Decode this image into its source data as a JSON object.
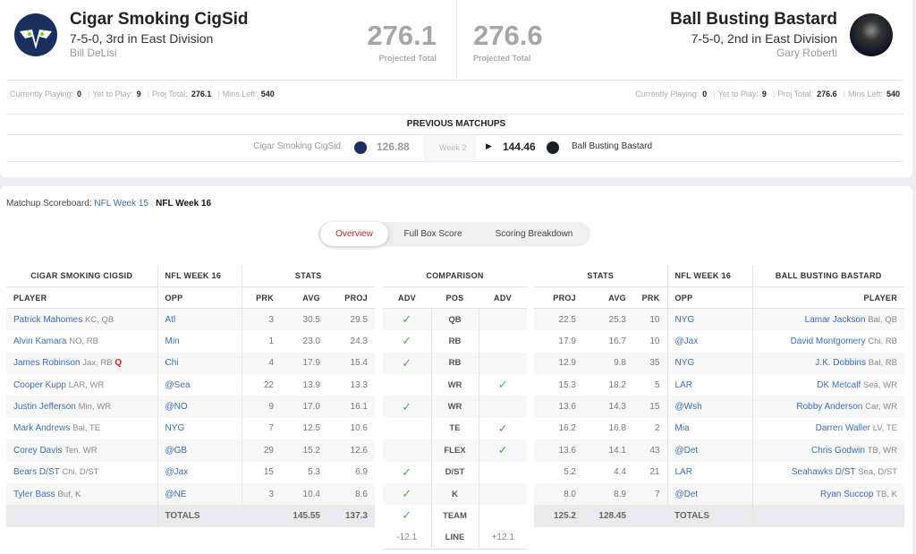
{
  "home": {
    "name": "Cigar Smoking CigSid",
    "record": "7-5-0, 3rd in East Division",
    "owner": "Bill DeLisi",
    "proj_total": "276.1",
    "proj_label": "Projected Total",
    "stats": {
      "playing_label": "Currently Playing:",
      "playing": "0",
      "ytp_label": "Yet to Play:",
      "ytp": "9",
      "proj_label": "Proj Total:",
      "proj": "276.1",
      "mins_label": "Mins Left:",
      "mins": "540"
    }
  },
  "away": {
    "name": "Ball Busting Bastard",
    "record": "7-5-0, 2nd in East Division",
    "owner": "Gary Roberti",
    "proj_total": "276.6",
    "proj_label": "Projected Total",
    "stats": {
      "playing_label": "Currently Playing:",
      "playing": "0",
      "ytp_label": "Yet to Play:",
      "ytp": "9",
      "proj_label": "Proj Total:",
      "proj": "276.6",
      "mins_label": "Mins Left:",
      "mins": "540"
    }
  },
  "previous": {
    "title": "PREVIOUS MATCHUPS",
    "home_name": "Cigar Smoking CigSid",
    "home_score": "126.88",
    "week": "Week 2",
    "away_score": "144.46",
    "away_name": "Ball Busting Bastard"
  },
  "scoreboard": {
    "label": "Matchup Scoreboard:",
    "prev_week": "NFL Week 15",
    "current_week": "NFL Week 16"
  },
  "tabs": [
    "Overview",
    "Full Box Score",
    "Scoring Breakdown"
  ],
  "colors": {
    "link": "#3b6db3",
    "active_tab": "#c62828",
    "check": "#4caf50"
  },
  "left_table": {
    "team_header": "CIGAR SMOKING CIGSID",
    "week_header": "NFL WEEK 16",
    "stats_header": "STATS",
    "cols": [
      "PLAYER",
      "OPP",
      "PRK",
      "AVG",
      "PROJ"
    ],
    "rows": [
      {
        "name": "Patrick Mahomes",
        "pos": "KC, QB",
        "opp": "Atl",
        "prk": "3",
        "avg": "30.5",
        "proj": "29.5"
      },
      {
        "name": "Alvin Kamara",
        "pos": "NO, RB",
        "opp": "Min",
        "prk": "1",
        "avg": "23.0",
        "proj": "24.3"
      },
      {
        "name": "James Robinson",
        "pos": "Jax, RB",
        "status": "Q",
        "opp": "Chi",
        "prk": "4",
        "avg": "17.9",
        "proj": "15.4"
      },
      {
        "name": "Cooper Kupp",
        "pos": "LAR, WR",
        "opp": "@Sea",
        "prk": "22",
        "avg": "13.9",
        "proj": "13.3"
      },
      {
        "name": "Justin Jefferson",
        "pos": "Min, WR",
        "opp": "@NO",
        "prk": "9",
        "avg": "17.0",
        "proj": "16.1"
      },
      {
        "name": "Mark Andrews",
        "pos": "Bal, TE",
        "opp": "NYG",
        "prk": "7",
        "avg": "12.5",
        "proj": "10.6"
      },
      {
        "name": "Corey Davis",
        "pos": "Ten, WR",
        "opp": "@GB",
        "prk": "29",
        "avg": "15.2",
        "proj": "12.6"
      },
      {
        "name": "Bears D/ST",
        "pos": "Chi, D/ST",
        "opp": "@Jax",
        "prk": "15",
        "avg": "5.3",
        "proj": "6.9"
      },
      {
        "name": "Tyler Bass",
        "pos": "Buf, K",
        "opp": "@NE",
        "prk": "3",
        "avg": "10.4",
        "proj": "8.6"
      }
    ],
    "totals_label": "TOTALS",
    "total_avg": "145.55",
    "total_proj": "137.3"
  },
  "comparison": {
    "header": "COMPARISON",
    "cols": [
      "ADV",
      "POS",
      "ADV"
    ],
    "rows": [
      {
        "pos": "QB",
        "adv": "left"
      },
      {
        "pos": "RB",
        "adv": "left"
      },
      {
        "pos": "RB",
        "adv": "left"
      },
      {
        "pos": "WR",
        "adv": "right"
      },
      {
        "pos": "WR",
        "adv": "left"
      },
      {
        "pos": "TE",
        "adv": "right"
      },
      {
        "pos": "FLEX",
        "adv": "right"
      },
      {
        "pos": "D/ST",
        "adv": "left"
      },
      {
        "pos": "K",
        "adv": "left"
      },
      {
        "pos": "TEAM",
        "adv": "left"
      }
    ],
    "line_label": "LINE",
    "line_left": "-12.1",
    "line_right": "+12.1"
  },
  "right_table": {
    "team_header": "BALL BUSTING BASTARD",
    "week_header": "NFL WEEK 16",
    "stats_header": "STATS",
    "cols": [
      "PROJ",
      "AVG",
      "PRK",
      "OPP",
      "PLAYER"
    ],
    "rows": [
      {
        "name": "Lamar Jackson",
        "pos": "Bal, QB",
        "opp": "NYG",
        "prk": "10",
        "avg": "25.3",
        "proj": "22.5"
      },
      {
        "name": "David Montgomery",
        "pos": "Chi, RB",
        "opp": "@Jax",
        "prk": "10",
        "avg": "16.7",
        "proj": "17.9"
      },
      {
        "name": "J.K. Dobbins",
        "pos": "Bal, RB",
        "opp": "NYG",
        "prk": "35",
        "avg": "9.8",
        "proj": "12.9"
      },
      {
        "name": "DK Metcalf",
        "pos": "Sea, WR",
        "opp": "LAR",
        "prk": "5",
        "avg": "18.2",
        "proj": "15.3"
      },
      {
        "name": "Robby Anderson",
        "pos": "Car, WR",
        "opp": "@Wsh",
        "prk": "15",
        "avg": "14.3",
        "proj": "13.6"
      },
      {
        "name": "Darren Waller",
        "pos": "LV, TE",
        "opp": "Mia",
        "prk": "2",
        "avg": "16.8",
        "proj": "16.2"
      },
      {
        "name": "Chris Godwin",
        "pos": "TB, WR",
        "opp": "@Det",
        "prk": "43",
        "avg": "14.1",
        "proj": "13.6"
      },
      {
        "name": "Seahawks D/ST",
        "pos": "Sea, D/ST",
        "opp": "LAR",
        "prk": "21",
        "avg": "4.4",
        "proj": "5.2"
      },
      {
        "name": "Ryan Succop",
        "pos": "TB, K",
        "opp": "@Det",
        "prk": "7",
        "avg": "8.9",
        "proj": "8.0"
      }
    ],
    "totals_label": "TOTALS",
    "total_avg": "128.45",
    "total_proj": "125.2"
  }
}
